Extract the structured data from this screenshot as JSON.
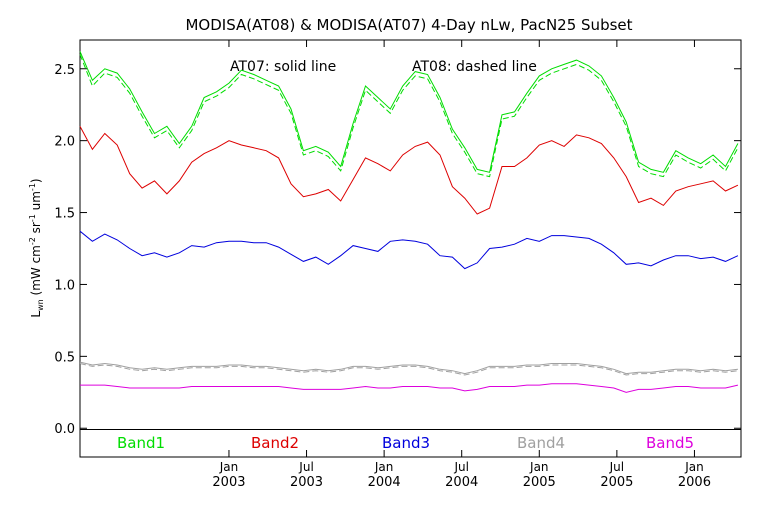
{
  "chart_data": {
    "type": "line",
    "title": "MODISA(AT08) & MODISA(AT07) 4-Day nLw, PacN25 Subset",
    "annotation_solid": "AT07: solid line",
    "annotation_dashed": "AT08: dashed line",
    "ylabel": {
      "base": "L",
      "base_sub": "wn",
      "units_open": " (mW cm",
      "exp1": "-2",
      "mid1": " sr",
      "exp2": "-1",
      "mid2": " um",
      "exp3": "-1",
      "units_close": ")"
    },
    "ylim": [
      -0.2,
      2.7
    ],
    "xlim": [
      2002.04,
      2006.3
    ],
    "yticks": [
      {
        "value": 0.0,
        "label": "0.0"
      },
      {
        "value": 0.5,
        "label": "0.5"
      },
      {
        "value": 1.0,
        "label": "1.0"
      },
      {
        "value": 1.5,
        "label": "1.5"
      },
      {
        "value": 2.0,
        "label": "2.0"
      },
      {
        "value": 2.5,
        "label": "2.5"
      }
    ],
    "xticks": [
      {
        "value": 2003.0,
        "month": "Jan",
        "year": "2003"
      },
      {
        "value": 2003.5,
        "month": "Jul",
        "year": "2003"
      },
      {
        "value": 2004.0,
        "month": "Jan",
        "year": "2004"
      },
      {
        "value": 2004.5,
        "month": "Jul",
        "year": "2004"
      },
      {
        "value": 2005.0,
        "month": "Jan",
        "year": "2005"
      },
      {
        "value": 2005.5,
        "month": "Jul",
        "year": "2005"
      },
      {
        "value": 2006.0,
        "month": "Jan",
        "year": "2006"
      }
    ],
    "grid": false,
    "x": [
      2002.04,
      2002.12,
      2002.2,
      2002.28,
      2002.36,
      2002.44,
      2002.52,
      2002.6,
      2002.68,
      2002.76,
      2002.84,
      2002.92,
      2003.0,
      2003.08,
      2003.16,
      2003.24,
      2003.32,
      2003.4,
      2003.48,
      2003.56,
      2003.64,
      2003.72,
      2003.8,
      2003.88,
      2003.96,
      2004.04,
      2004.12,
      2004.2,
      2004.28,
      2004.36,
      2004.44,
      2004.52,
      2004.6,
      2004.68,
      2004.76,
      2004.84,
      2004.92,
      2005.0,
      2005.08,
      2005.16,
      2005.24,
      2005.32,
      2005.4,
      2005.48,
      2005.56,
      2005.64,
      2005.72,
      2005.8,
      2005.88,
      2005.96,
      2006.04,
      2006.12,
      2006.2,
      2006.28
    ],
    "series": [
      {
        "name": "Band1",
        "color": "#00dd00",
        "values": [
          2.62,
          2.42,
          2.5,
          2.47,
          2.36,
          2.2,
          2.05,
          2.1,
          1.98,
          2.1,
          2.3,
          2.34,
          2.4,
          2.49,
          2.46,
          2.42,
          2.38,
          2.22,
          1.93,
          1.96,
          1.92,
          1.82,
          2.12,
          2.38,
          2.3,
          2.22,
          2.38,
          2.48,
          2.46,
          2.3,
          2.08,
          1.95,
          1.8,
          1.78,
          2.18,
          2.2,
          2.33,
          2.45,
          2.5,
          2.53,
          2.56,
          2.52,
          2.45,
          2.3,
          2.13,
          1.85,
          1.8,
          1.78,
          1.93,
          1.88,
          1.84,
          1.9,
          1.82,
          1.98
        ],
        "dashed_values": [
          2.6,
          2.38,
          2.47,
          2.44,
          2.33,
          2.17,
          2.02,
          2.07,
          1.95,
          2.07,
          2.27,
          2.31,
          2.37,
          2.46,
          2.43,
          2.39,
          2.35,
          2.19,
          1.9,
          1.93,
          1.89,
          1.79,
          2.09,
          2.35,
          2.27,
          2.19,
          2.35,
          2.45,
          2.43,
          2.27,
          2.05,
          1.92,
          1.77,
          1.75,
          2.15,
          2.17,
          2.3,
          2.42,
          2.47,
          2.5,
          2.53,
          2.49,
          2.42,
          2.27,
          2.1,
          1.82,
          1.77,
          1.75,
          1.9,
          1.85,
          1.81,
          1.87,
          1.79,
          1.95
        ]
      },
      {
        "name": "Band2",
        "color": "#dd0000",
        "values": [
          2.1,
          1.94,
          2.05,
          1.97,
          1.77,
          1.67,
          1.72,
          1.63,
          1.72,
          1.85,
          1.91,
          1.95,
          2.0,
          1.97,
          1.95,
          1.93,
          1.88,
          1.7,
          1.61,
          1.63,
          1.66,
          1.58,
          1.73,
          1.88,
          1.84,
          1.79,
          1.9,
          1.96,
          1.99,
          1.9,
          1.68,
          1.6,
          1.49,
          1.53,
          1.82,
          1.82,
          1.88,
          1.97,
          2.0,
          1.96,
          2.04,
          2.02,
          1.98,
          1.88,
          1.75,
          1.57,
          1.6,
          1.55,
          1.65,
          1.68,
          1.7,
          1.72,
          1.65,
          1.69
        ],
        "dashed_values": null
      },
      {
        "name": "Band3",
        "color": "#0000dd",
        "values": [
          1.37,
          1.3,
          1.35,
          1.31,
          1.25,
          1.2,
          1.22,
          1.19,
          1.22,
          1.27,
          1.26,
          1.29,
          1.3,
          1.3,
          1.29,
          1.29,
          1.26,
          1.21,
          1.16,
          1.19,
          1.14,
          1.2,
          1.27,
          1.25,
          1.23,
          1.3,
          1.31,
          1.3,
          1.28,
          1.2,
          1.19,
          1.11,
          1.15,
          1.25,
          1.26,
          1.28,
          1.32,
          1.3,
          1.34,
          1.34,
          1.33,
          1.32,
          1.28,
          1.22,
          1.14,
          1.15,
          1.13,
          1.17,
          1.2,
          1.2,
          1.18,
          1.19,
          1.16,
          1.2
        ],
        "dashed_values": null
      },
      {
        "name": "Band4",
        "color": "#a0a0a0",
        "values": [
          0.46,
          0.44,
          0.45,
          0.44,
          0.42,
          0.41,
          0.42,
          0.41,
          0.42,
          0.43,
          0.43,
          0.43,
          0.44,
          0.44,
          0.43,
          0.43,
          0.42,
          0.41,
          0.4,
          0.41,
          0.4,
          0.41,
          0.43,
          0.43,
          0.42,
          0.43,
          0.44,
          0.44,
          0.43,
          0.41,
          0.4,
          0.38,
          0.4,
          0.43,
          0.43,
          0.43,
          0.44,
          0.44,
          0.45,
          0.45,
          0.45,
          0.44,
          0.43,
          0.41,
          0.38,
          0.39,
          0.39,
          0.4,
          0.41,
          0.41,
          0.4,
          0.41,
          0.4,
          0.41
        ],
        "dashed_values": [
          0.45,
          0.43,
          0.44,
          0.43,
          0.41,
          0.4,
          0.41,
          0.4,
          0.41,
          0.42,
          0.42,
          0.42,
          0.43,
          0.43,
          0.42,
          0.42,
          0.41,
          0.4,
          0.39,
          0.4,
          0.39,
          0.4,
          0.42,
          0.42,
          0.41,
          0.42,
          0.43,
          0.43,
          0.42,
          0.4,
          0.39,
          0.37,
          0.39,
          0.42,
          0.42,
          0.42,
          0.43,
          0.43,
          0.44,
          0.44,
          0.44,
          0.43,
          0.42,
          0.4,
          0.37,
          0.38,
          0.38,
          0.39,
          0.4,
          0.4,
          0.39,
          0.4,
          0.39,
          0.4
        ]
      },
      {
        "name": "Band5",
        "color": "#dd00dd",
        "values": [
          0.3,
          0.3,
          0.3,
          0.29,
          0.28,
          0.28,
          0.28,
          0.28,
          0.28,
          0.29,
          0.29,
          0.29,
          0.29,
          0.29,
          0.29,
          0.29,
          0.29,
          0.28,
          0.27,
          0.27,
          0.27,
          0.27,
          0.28,
          0.29,
          0.28,
          0.28,
          0.29,
          0.29,
          0.29,
          0.28,
          0.28,
          0.26,
          0.27,
          0.29,
          0.29,
          0.29,
          0.3,
          0.3,
          0.31,
          0.31,
          0.31,
          0.3,
          0.29,
          0.28,
          0.25,
          0.27,
          0.27,
          0.28,
          0.29,
          0.29,
          0.28,
          0.28,
          0.28,
          0.3
        ],
        "dashed_values": null
      }
    ]
  }
}
